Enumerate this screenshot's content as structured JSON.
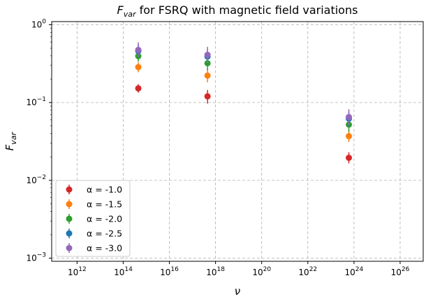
{
  "chart_data": {
    "type": "scatter",
    "title": {
      "prefix": "F",
      "sub": "var",
      "rest": " for FSRQ with magnetic field variations"
    },
    "xlabel": "ν",
    "ylabel": {
      "main": "F",
      "sub": "var"
    },
    "x_scale": "log",
    "y_scale": "log",
    "xlim_exponent": [
      10.9,
      27.0
    ],
    "ylim_exponent": [
      -3.04,
      0.04
    ],
    "x_ticks": [
      {
        "base": "10",
        "exp": "12",
        "value": 1000000000000.0
      },
      {
        "base": "10",
        "exp": "14",
        "value": 100000000000000.0
      },
      {
        "base": "10",
        "exp": "16",
        "value": 1e+16
      },
      {
        "base": "10",
        "exp": "18",
        "value": 1e+18
      },
      {
        "base": "10",
        "exp": "20",
        "value": 1e+20
      },
      {
        "base": "10",
        "exp": "22",
        "value": 1e+22
      },
      {
        "base": "10",
        "exp": "24",
        "value": 1e+24
      },
      {
        "base": "10",
        "exp": "26",
        "value": 1e+26
      }
    ],
    "y_ticks": [
      {
        "base": "10",
        "exp": "0",
        "value": 1
      },
      {
        "base": "10",
        "exp": "−1",
        "value": 0.1
      },
      {
        "base": "10",
        "exp": "−2",
        "value": 0.01
      },
      {
        "base": "10",
        "exp": "−3",
        "value": 0.001
      }
    ],
    "grid": true,
    "legend_position": "lower-left",
    "x": [
      450000000000000.0,
      4.5e+17,
      6e+23
    ],
    "series": [
      {
        "name": "α = -1.0",
        "color": "#d62728",
        "values": [
          0.152,
          0.12,
          0.0195
        ],
        "err_low": [
          0.018,
          0.023,
          0.003
        ],
        "err_high": [
          0.02,
          0.025,
          0.0035
        ]
      },
      {
        "name": "α = -1.5",
        "color": "#ff7f0e",
        "values": [
          0.285,
          0.222,
          0.037
        ],
        "err_low": [
          0.04,
          0.04,
          0.006
        ],
        "err_high": [
          0.045,
          0.045,
          0.007
        ]
      },
      {
        "name": "α = -2.0",
        "color": "#2ca02c",
        "values": [
          0.395,
          0.32,
          0.052
        ],
        "err_low": [
          0.06,
          0.06,
          0.01
        ],
        "err_high": [
          0.07,
          0.07,
          0.012
        ]
      },
      {
        "name": "α = -2.5",
        "color": "#1f77b4",
        "values": [
          0.46,
          0.39,
          0.062
        ],
        "err_low": [
          0.08,
          0.08,
          0.013
        ],
        "err_high": [
          0.1,
          0.1,
          0.015
        ]
      },
      {
        "name": "α = -3.0",
        "color": "#9467bd",
        "values": [
          0.475,
          0.41,
          0.065
        ],
        "err_low": [
          0.09,
          0.09,
          0.014
        ],
        "err_high": [
          0.12,
          0.11,
          0.017
        ]
      }
    ]
  }
}
